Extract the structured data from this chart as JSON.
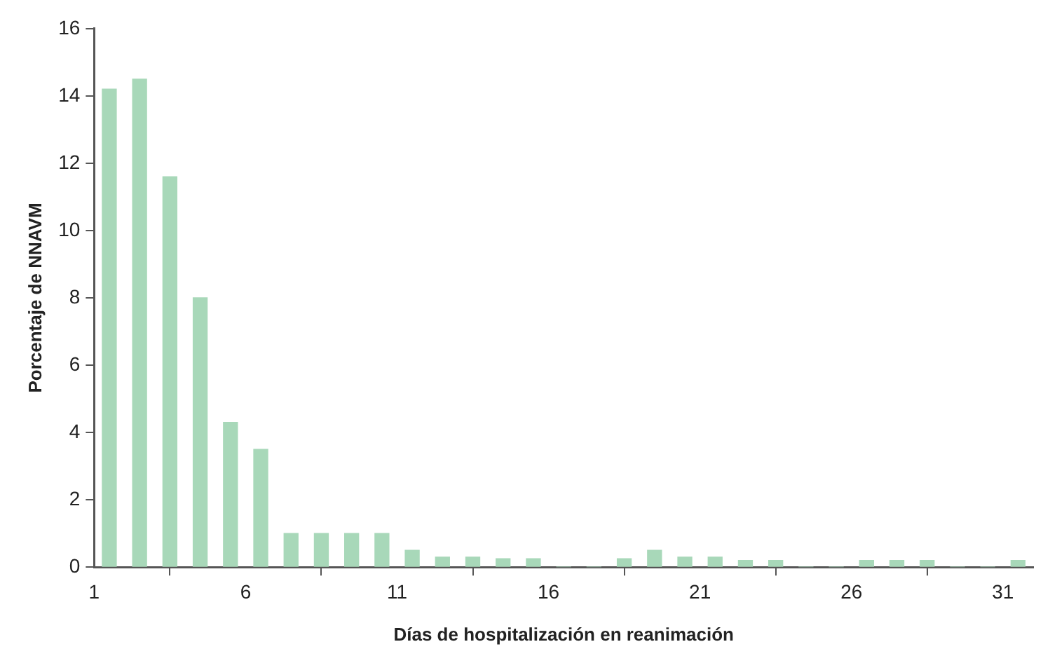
{
  "chart_data": {
    "type": "histogram",
    "xlabel": "Días de hospitalización en reanimación",
    "ylabel": "Porcentaje de NNAVM",
    "bins": [
      1,
      2,
      3,
      4,
      5,
      6,
      7,
      8,
      9,
      10,
      11,
      12,
      13,
      14,
      15,
      16,
      17,
      18,
      19,
      20,
      21,
      22,
      23,
      24,
      25,
      26,
      27,
      28,
      29,
      30,
      31,
      32
    ],
    "values": [
      14.2,
      14.5,
      11.6,
      8,
      4.3,
      3.5,
      1,
      1,
      1,
      1,
      0.5,
      0.3,
      0.3,
      0.25,
      0.25,
      0,
      0,
      0.25,
      0.5,
      0.3,
      0.3,
      0.2,
      0.2,
      0,
      0,
      0.2,
      0.2,
      0.2,
      0,
      0,
      0.2
    ],
    "color": "#a8d8b9",
    "xlim": [
      1,
      32
    ],
    "xticks": [
      1,
      6,
      11,
      16,
      21,
      26,
      31
    ],
    "ylim": [
      0,
      16
    ],
    "yticks": [
      0,
      2,
      4,
      6,
      8,
      10,
      12,
      14,
      16
    ],
    "grid": false,
    "legend": false
  }
}
